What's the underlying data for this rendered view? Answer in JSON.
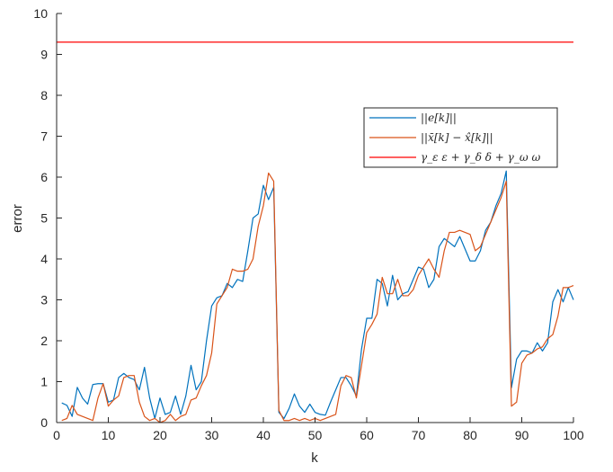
{
  "chart_data": {
    "type": "line",
    "xlabel": "k",
    "ylabel": "error",
    "xlim": [
      0,
      100
    ],
    "ylim": [
      0,
      10
    ],
    "xticks": [
      "0",
      "10",
      "20",
      "30",
      "40",
      "50",
      "60",
      "70",
      "80",
      "90",
      "100"
    ],
    "yticks": [
      "0",
      "1",
      "2",
      "3",
      "4",
      "5",
      "6",
      "7",
      "8",
      "9",
      "10"
    ],
    "grid": false,
    "legend_position": "upper-right-middle",
    "x": [
      1,
      2,
      3,
      4,
      5,
      6,
      7,
      8,
      9,
      10,
      11,
      12,
      13,
      14,
      15,
      16,
      17,
      18,
      19,
      20,
      21,
      22,
      23,
      24,
      25,
      26,
      27,
      28,
      29,
      30,
      31,
      32,
      33,
      34,
      35,
      36,
      37,
      38,
      39,
      40,
      41,
      42,
      43,
      44,
      45,
      46,
      47,
      48,
      49,
      50,
      51,
      52,
      53,
      54,
      55,
      56,
      57,
      58,
      59,
      60,
      61,
      62,
      63,
      64,
      65,
      66,
      67,
      68,
      69,
      70,
      71,
      72,
      73,
      74,
      75,
      76,
      77,
      78,
      79,
      80,
      81,
      82,
      83,
      84,
      85,
      86,
      87,
      88,
      89,
      90,
      91,
      92,
      93,
      94,
      95,
      96,
      97,
      98,
      99,
      100
    ],
    "series": [
      {
        "name": "||e[k]||",
        "color": "#0072BD",
        "values": [
          0.48,
          0.42,
          0.15,
          0.86,
          0.6,
          0.45,
          0.93,
          0.95,
          0.95,
          0.5,
          0.55,
          1.1,
          1.2,
          1.1,
          1.05,
          0.8,
          1.35,
          0.6,
          0.1,
          0.6,
          0.2,
          0.25,
          0.65,
          0.2,
          0.65,
          1.4,
          0.8,
          1.0,
          2.0,
          2.85,
          3.05,
          3.1,
          3.4,
          3.3,
          3.5,
          3.45,
          4.2,
          5.0,
          5.1,
          5.8,
          5.45,
          5.75,
          0.25,
          0.1,
          0.35,
          0.7,
          0.4,
          0.25,
          0.45,
          0.25,
          0.2,
          0.18,
          0.5,
          0.8,
          1.1,
          1.1,
          0.9,
          0.65,
          1.8,
          2.55,
          2.55,
          3.5,
          3.4,
          2.85,
          3.6,
          3.0,
          3.15,
          3.2,
          3.5,
          3.8,
          3.75,
          3.3,
          3.5,
          4.3,
          4.5,
          4.4,
          4.3,
          4.55,
          4.25,
          3.95,
          3.95,
          4.2,
          4.7,
          4.9,
          5.3,
          5.6,
          6.15,
          0.85,
          1.55,
          1.75,
          1.75,
          1.7,
          1.95,
          1.75,
          1.95,
          2.95,
          3.25,
          2.95,
          3.3,
          3.0
        ],
        "values_note": ""
      },
      {
        "name": "||x̄[k] − x̂[k]||",
        "color": "#D95319",
        "values": [
          0.05,
          0.1,
          0.42,
          0.2,
          0.15,
          0.1,
          0.05,
          0.6,
          0.95,
          0.4,
          0.55,
          0.65,
          1.1,
          1.15,
          1.15,
          0.5,
          0.15,
          0.05,
          0.1,
          0.0,
          0.05,
          0.2,
          0.05,
          0.15,
          0.2,
          0.55,
          0.6,
          0.9,
          1.15,
          1.7,
          2.9,
          3.1,
          3.3,
          3.75,
          3.7,
          3.7,
          3.75,
          4.0,
          4.8,
          5.3,
          6.1,
          5.9,
          0.3,
          0.05,
          0.05,
          0.1,
          0.05,
          0.1,
          0.05,
          0.1,
          0.05,
          0.1,
          0.15,
          0.2,
          0.9,
          1.15,
          1.1,
          0.6,
          1.4,
          2.2,
          2.4,
          2.65,
          3.55,
          3.15,
          3.15,
          3.5,
          3.1,
          3.1,
          3.25,
          3.6,
          3.8,
          4.0,
          3.75,
          3.55,
          4.2,
          4.65,
          4.65,
          4.7,
          4.65,
          4.6,
          4.2,
          4.3,
          4.6,
          4.9,
          5.2,
          5.5,
          5.9,
          0.4,
          0.5,
          1.45,
          1.65,
          1.7,
          1.8,
          1.85,
          2.05,
          2.15,
          2.6,
          3.3,
          3.3,
          3.35
        ],
        "values_note": ""
      },
      {
        "name": "γ_ε ε + γ_δ δ + γ_ω ω",
        "color": "#FF0000",
        "values": [
          9.3,
          9.3
        ],
        "x": [
          0,
          100
        ]
      }
    ],
    "legend": [
      {
        "label": "||e[k]||",
        "color": "#0072BD"
      },
      {
        "label": "||x̄[k] − x̂[k]||",
        "color": "#D95319"
      },
      {
        "label": "γ_ε ε + γ_δ δ + γ_ω ω",
        "color": "#FF0000"
      }
    ]
  }
}
